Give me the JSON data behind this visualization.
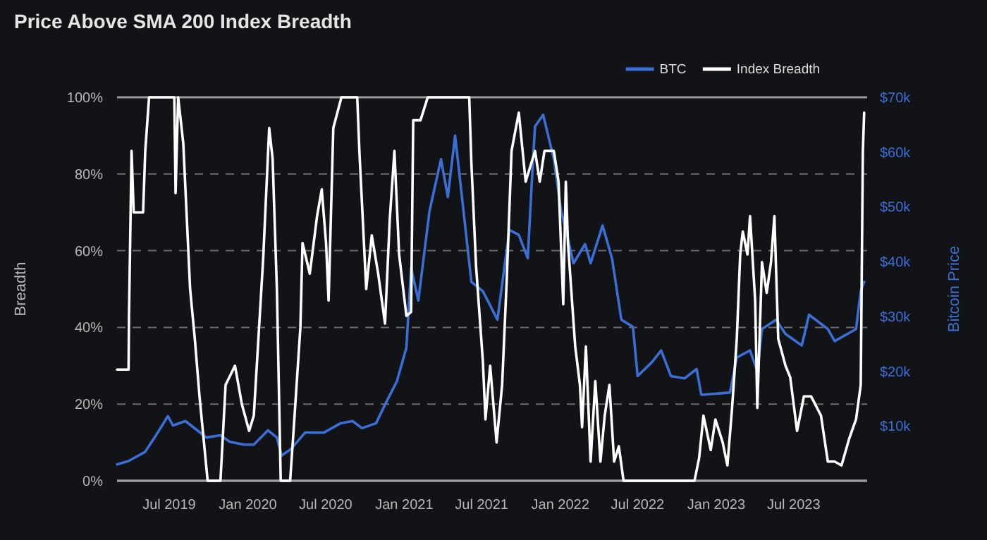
{
  "chart_data": {
    "type": "line",
    "title": "Price Above SMA 200 Index Breadth",
    "ylabel": "Breadth",
    "y2label": "Bitcoin Price",
    "xlim": [
      "2019-03-01",
      "2023-12-20"
    ],
    "xticks": [
      {
        "value": "2019-07-01",
        "label": "Jul 2019"
      },
      {
        "value": "2020-01-01",
        "label": "Jan 2020"
      },
      {
        "value": "2020-07-01",
        "label": "Jul 2020"
      },
      {
        "value": "2021-01-01",
        "label": "Jan 2021"
      },
      {
        "value": "2021-07-01",
        "label": "Jul 2021"
      },
      {
        "value": "2022-01-01",
        "label": "Jan 2022"
      },
      {
        "value": "2022-07-01",
        "label": "Jul 2022"
      },
      {
        "value": "2023-01-01",
        "label": "Jan 2023"
      },
      {
        "value": "2023-07-01",
        "label": "Jul 2023"
      }
    ],
    "ylim": [
      0,
      100
    ],
    "yticks": [
      {
        "value": 0,
        "label": "0%"
      },
      {
        "value": 20,
        "label": "20%"
      },
      {
        "value": 40,
        "label": "40%"
      },
      {
        "value": 60,
        "label": "60%"
      },
      {
        "value": 80,
        "label": "80%"
      },
      {
        "value": 100,
        "label": "100%"
      }
    ],
    "y2lim": [
      0,
      70000
    ],
    "y2ticks": [
      {
        "value": 10000,
        "label": "$10k"
      },
      {
        "value": 20000,
        "label": "$20k"
      },
      {
        "value": 30000,
        "label": "$30k"
      },
      {
        "value": 40000,
        "label": "$40k"
      },
      {
        "value": 50000,
        "label": "$50k"
      },
      {
        "value": 60000,
        "label": "$60k"
      },
      {
        "value": 70000,
        "label": "$70k"
      }
    ],
    "grid": "y",
    "legend": "top right",
    "line_style": "solid",
    "series": [
      {
        "name": "BTC",
        "color": "#3b6fd6",
        "axis": "y2",
        "x": [
          "2019-03-01",
          "2019-03-28",
          "2019-05-06",
          "2019-05-28",
          "2019-06-28",
          "2019-07-10",
          "2019-08-08",
          "2019-09-05",
          "2019-09-26",
          "2019-10-29",
          "2019-11-20",
          "2019-12-23",
          "2020-01-15",
          "2020-02-17",
          "2020-03-09",
          "2020-03-20",
          "2020-04-11",
          "2020-05-14",
          "2020-06-27",
          "2020-08-05",
          "2020-09-02",
          "2020-09-24",
          "2020-10-27",
          "2020-11-17",
          "2020-12-15",
          "2021-01-06",
          "2021-01-17",
          "2021-02-03",
          "2021-03-01",
          "2021-03-28",
          "2021-04-13",
          "2021-04-30",
          "2021-05-16",
          "2021-06-07",
          "2021-07-04",
          "2021-08-07",
          "2021-09-04",
          "2021-09-26",
          "2021-10-17",
          "2021-10-28",
          "2021-11-03",
          "2021-11-22",
          "2021-12-17",
          "2022-01-03",
          "2022-01-14",
          "2022-02-01",
          "2022-02-28",
          "2022-03-13",
          "2022-04-10",
          "2022-05-02",
          "2022-05-24",
          "2022-06-20",
          "2022-07-01",
          "2022-08-04",
          "2022-08-25",
          "2022-09-17",
          "2022-10-19",
          "2022-11-16",
          "2022-11-27",
          "2023-02-02",
          "2023-02-18",
          "2023-03-21",
          "2023-04-07",
          "2023-04-18",
          "2023-05-21",
          "2023-06-12",
          "2023-07-20",
          "2023-08-06",
          "2023-09-19",
          "2023-10-05",
          "2023-11-24",
          "2023-12-05",
          "2023-12-13"
        ],
        "values": [
          3000,
          3600,
          5300,
          7900,
          11800,
          10100,
          10900,
          9200,
          7900,
          8300,
          7100,
          6600,
          6600,
          9200,
          7900,
          4600,
          5800,
          8800,
          8800,
          10500,
          10900,
          9600,
          10500,
          13900,
          18200,
          24300,
          38900,
          32900,
          49200,
          58700,
          51800,
          63000,
          51800,
          36300,
          34600,
          29400,
          45800,
          44900,
          40600,
          56900,
          64700,
          66800,
          58700,
          49200,
          45800,
          39700,
          43200,
          39700,
          46600,
          40600,
          29400,
          28100,
          19100,
          21700,
          23800,
          19100,
          18700,
          20400,
          15700,
          16100,
          22500,
          23800,
          20000,
          27700,
          29400,
          26800,
          24700,
          30300,
          27700,
          25500,
          27700,
          34600,
          36300
        ]
      },
      {
        "name": "Index Breadth",
        "color": "#ffffff",
        "x": [
          "2019-03-01",
          "2019-03-28",
          "2019-03-29",
          "2019-04-04",
          "2019-04-09",
          "2019-05-01",
          "2019-05-06",
          "2019-05-15",
          "2019-07-13",
          "2019-07-16",
          "2019-07-22",
          "2019-08-03",
          "2019-08-19",
          "2019-08-30",
          "2019-09-10",
          "2019-09-29",
          "2019-10-29",
          "2019-11-10",
          "2019-12-02",
          "2019-12-18",
          "2020-01-04",
          "2020-01-15",
          "2020-02-06",
          "2020-02-20",
          "2020-02-28",
          "2020-03-09",
          "2020-03-18",
          "2020-04-09",
          "2020-04-17",
          "2020-05-03",
          "2020-05-08",
          "2020-05-25",
          "2020-06-11",
          "2020-06-22",
          "2020-07-02",
          "2020-07-08",
          "2020-07-19",
          "2020-08-07",
          "2020-09-13",
          "2020-09-18",
          "2020-10-04",
          "2020-10-17",
          "2020-11-01",
          "2020-11-17",
          "2020-11-28",
          "2020-12-09",
          "2020-12-20",
          "2021-01-06",
          "2021-01-17",
          "2021-01-22",
          "2021-02-08",
          "2021-02-25",
          "2021-06-02",
          "2021-06-07",
          "2021-06-18",
          "2021-07-04",
          "2021-07-10",
          "2021-07-21",
          "2021-08-05",
          "2021-08-18",
          "2021-08-29",
          "2021-09-09",
          "2021-09-26",
          "2021-10-12",
          "2021-11-03",
          "2021-11-14",
          "2021-11-25",
          "2021-12-17",
          "2021-12-28",
          "2022-01-08",
          "2022-01-14",
          "2022-01-19",
          "2022-02-05",
          "2022-02-16",
          "2022-02-21",
          "2022-03-02",
          "2022-03-13",
          "2022-03-24",
          "2022-04-05",
          "2022-04-15",
          "2022-04-26",
          "2022-05-07",
          "2022-05-18",
          "2022-05-29",
          "2022-11-11",
          "2022-11-22",
          "2022-12-02",
          "2022-12-19",
          "2022-12-30",
          "2023-01-16",
          "2023-01-27",
          "2023-02-07",
          "2023-02-18",
          "2023-02-26",
          "2023-03-04",
          "2023-03-15",
          "2023-03-21",
          "2023-04-02",
          "2023-04-07",
          "2023-04-18",
          "2023-04-29",
          "2023-05-09",
          "2023-05-17",
          "2023-05-26",
          "2023-06-12",
          "2023-06-23",
          "2023-07-09",
          "2023-07-25",
          "2023-08-11",
          "2023-09-03",
          "2023-09-19",
          "2023-10-05",
          "2023-10-21",
          "2023-11-08",
          "2023-11-24",
          "2023-12-05",
          "2023-12-10",
          "2023-12-13"
        ],
        "values": [
          29,
          29,
          43,
          86,
          70,
          70,
          86,
          100,
          100,
          75,
          100,
          88,
          50,
          37,
          22,
          0,
          0,
          25,
          30,
          20,
          13,
          17,
          58,
          92,
          84,
          50,
          0,
          0,
          13,
          40,
          62,
          54,
          69,
          76,
          62,
          47,
          92,
          100,
          100,
          86,
          50,
          64,
          54,
          41,
          68,
          86,
          59,
          43,
          44,
          94,
          94,
          100,
          100,
          83,
          56,
          31,
          16,
          30,
          10,
          25,
          53,
          86,
          96,
          78,
          86,
          78,
          86,
          86,
          78,
          46,
          78,
          62,
          35,
          25,
          14,
          35,
          5,
          26,
          5,
          17,
          25,
          5,
          9,
          0,
          0,
          6,
          17,
          8,
          16,
          10,
          4,
          19,
          37,
          59,
          65,
          59,
          69,
          47,
          19,
          57,
          49,
          57,
          69,
          37,
          30,
          27,
          13,
          22,
          22,
          17,
          5,
          5,
          4,
          11,
          16,
          25,
          86,
          96
        ]
      }
    ]
  }
}
